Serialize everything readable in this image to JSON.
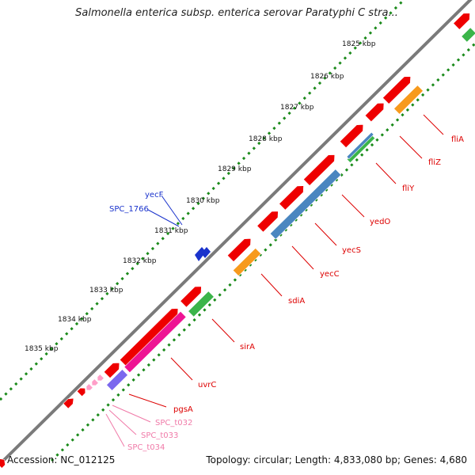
{
  "title": "Salmonella enterica subsp. enterica serovar Paratyphi C stra...",
  "footer": {
    "accession": "Accession: NC_012125",
    "summary": "Topology: circular; Length: 4,833,080 bp; Genes: 4,680"
  },
  "ticks": [
    "1825 kbp",
    "1826 kbp",
    "1827 kbp",
    "1828 kbp",
    "1829 kbp",
    "1830 kbp",
    "1831 kbp",
    "1832 kbp",
    "1833 kbp",
    "1834 kbp",
    "1835 kbp"
  ],
  "gene_labels": [
    "fliA",
    "fliZ",
    "fliY",
    "yedO",
    "yecS",
    "yecC",
    "sdiA",
    "sirA",
    "uvrC",
    "pgsA",
    "SPC_t032",
    "SPC_t033",
    "SPC_t034",
    "yecF",
    "SPC_1766"
  ],
  "colors": {
    "backbone": "#7a7a7a",
    "tick_dots": "#1a8a1a",
    "gene_red": "#ee0000",
    "cog_orange": "#f79a1d",
    "cog_blue": "#4a86c0",
    "cog_green": "#3bb54a",
    "cog_magenta": "#ee1493",
    "cog_purple": "#7b68ee",
    "trna_pink": "#ff9ec8",
    "label_red": "#dd0000",
    "label_blue": "#1a33cc",
    "label_pink": "#f07aa8"
  }
}
